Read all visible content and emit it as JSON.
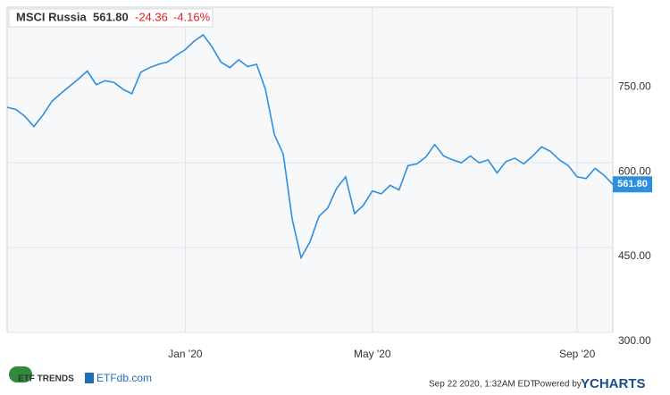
{
  "chart_data": {
    "type": "line",
    "title": "MSCI Russia",
    "price": "561.80",
    "change": "-24.36",
    "change_pct": "-4.16%",
    "categories": [
      null,
      null,
      null,
      null,
      null,
      null,
      null,
      null,
      null,
      null,
      null,
      null,
      null,
      null,
      null,
      null,
      null,
      null,
      null,
      null,
      "Jan '20",
      null,
      null,
      null,
      null,
      null,
      null,
      null,
      null,
      null,
      null,
      null,
      null,
      null,
      null,
      null,
      null,
      null,
      null,
      null,
      null,
      "May '20",
      null,
      null,
      null,
      null,
      null,
      null,
      null,
      null,
      null,
      null,
      null,
      null,
      null,
      null,
      null,
      null,
      null,
      null,
      null,
      null,
      null,
      null,
      "Sep '20",
      null,
      null,
      null,
      null
    ],
    "series": [
      {
        "name": "MSCI Russia",
        "color": "#2e8ee0",
        "values": [
          698,
          694,
          682,
          664,
          684,
          708,
          722,
          735,
          748,
          762,
          738,
          745,
          742,
          730,
          722,
          760,
          768,
          774,
          778,
          790,
          800,
          815,
          826,
          805,
          778,
          768,
          782,
          770,
          774,
          730,
          650,
          615,
          500,
          432,
          460,
          505,
          520,
          555,
          575,
          510,
          525,
          550,
          545,
          560,
          552,
          595,
          598,
          610,
          632,
          612,
          605,
          600,
          612,
          600,
          605,
          582,
          602,
          608,
          598,
          612,
          628,
          620,
          605,
          595,
          575,
          572,
          590,
          578,
          561.8
        ]
      }
    ],
    "ylim": [
      300,
      875
    ],
    "yticks": [
      {
        "value": 300,
        "label": "300.00"
      },
      {
        "value": 450,
        "label": "450.00"
      },
      {
        "value": 600,
        "label": "600.00"
      },
      {
        "value": 750,
        "label": "750.00"
      }
    ],
    "grid": true
  },
  "footer": {
    "timestamp": "Sep 22 2020, 1:32AM EDT.",
    "powered_by": "Powered by",
    "brand": "YCHARTS",
    "logo1": "ETF TRENDS",
    "logo2": "ETFdb.com"
  }
}
